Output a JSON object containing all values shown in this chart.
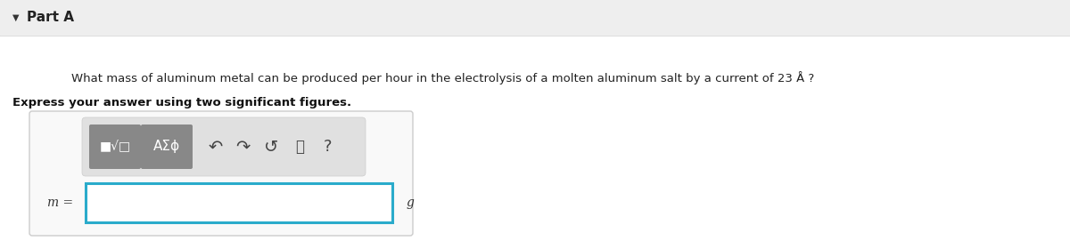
{
  "background_color": "#f7f7f7",
  "header_bg": "#eeeeee",
  "white_bg": "#ffffff",
  "title": "Part A",
  "triangle": "▼",
  "question": "What mass of aluminum metal can be produced per hour in the electrolysis of a molten aluminum salt by a current of 23 Å ?",
  "bold_text": "Express your answer using two significant figures.",
  "m_label": "m =",
  "g_label": "g",
  "btn1_label": "■√□",
  "btn2_label": "ΑΣϕ",
  "input_border_color": "#2aabcb",
  "box_border": "#cccccc",
  "toolbar_bg": "#e0e0e0",
  "btn_bg": "#888888",
  "btn_text_color": "#ffffff",
  "icon_color": "#444444",
  "header_line_color": "#dddddd"
}
